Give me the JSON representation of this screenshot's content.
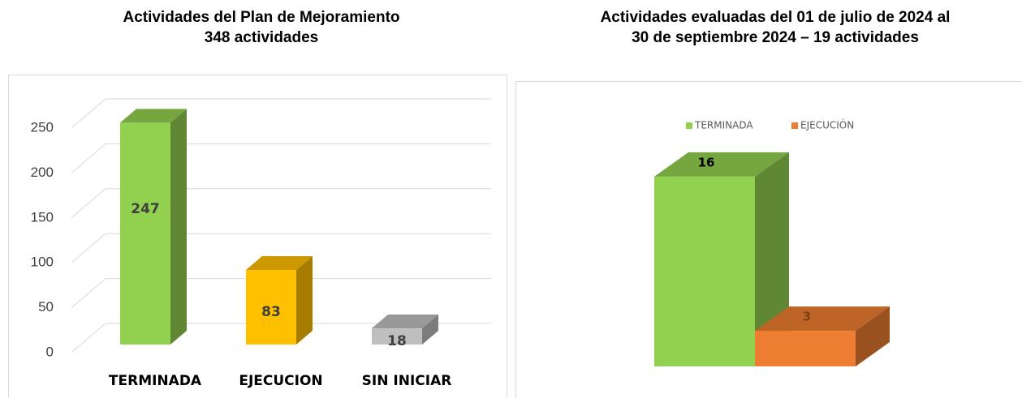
{
  "chart_data": [
    {
      "type": "bar3d",
      "title": [
        "Actividades del Plan de Mejoramiento",
        "348 actividades"
      ],
      "categories": [
        "TERMINADA",
        "EJECUCION",
        "SIN INICIAR"
      ],
      "values": [
        247,
        83,
        18
      ],
      "colors": [
        "#92d050",
        "#ffc000",
        "#bfbfbf"
      ],
      "ylim": [
        0,
        250
      ],
      "yticks": [
        0,
        50,
        100,
        150,
        200,
        250
      ],
      "grid": true
    },
    {
      "type": "bar3d-legend",
      "title": [
        "Actividades evaluadas del 01 de julio de 2024 al",
        "30 de septiembre 2024 – 19 actividades"
      ],
      "series": [
        {
          "name": "TERMINADA",
          "color": "#92d050",
          "values": [
            16
          ]
        },
        {
          "name": "EJECUCIÓN",
          "color": "#ed7d31",
          "values": [
            3
          ]
        }
      ]
    }
  ]
}
